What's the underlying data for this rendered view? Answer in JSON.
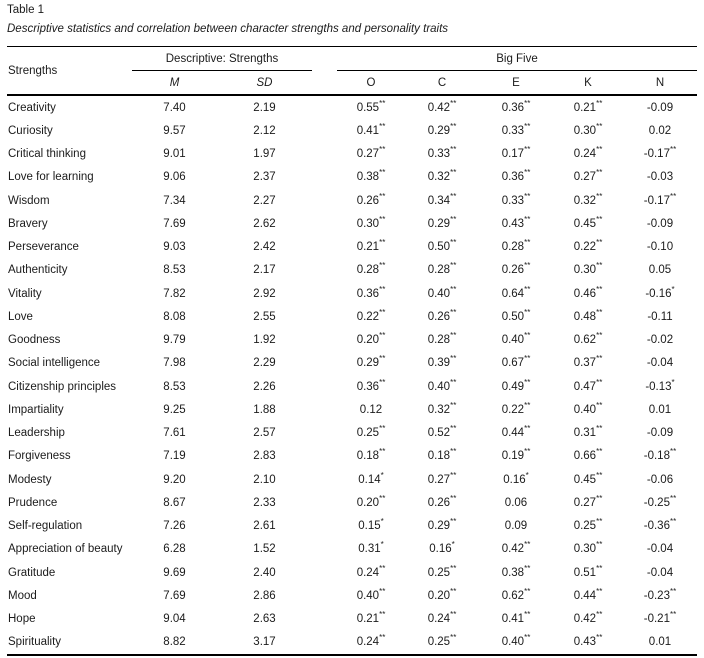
{
  "table_title": "Table 1",
  "caption": "Descriptive statistics and correlation between character strengths and personality traits",
  "header": {
    "row_label": "Strengths",
    "groups": {
      "descriptive": "Descriptive: Strengths",
      "bigfive": "Big Five"
    },
    "sub": {
      "m": "M",
      "sd": "SD",
      "o": "O",
      "c": "C",
      "e": "E",
      "k": "K",
      "n": "N"
    }
  },
  "rows": [
    {
      "strength": "Creativity",
      "m": "7.40",
      "sd": "2.19",
      "o": "0.55**",
      "c": "0.42**",
      "e": "0.36**",
      "k": "0.21**",
      "n": "-0.09"
    },
    {
      "strength": "Curiosity",
      "m": "9.57",
      "sd": "2.12",
      "o": "0.41**",
      "c": "0.29**",
      "e": "0.33**",
      "k": "0.30**",
      "n": "0.02"
    },
    {
      "strength": "Critical thinking",
      "m": "9.01",
      "sd": "1.97",
      "o": "0.27**",
      "c": "0.33**",
      "e": "0.17**",
      "k": "0.24**",
      "n": "-0.17**"
    },
    {
      "strength": "Love for learning",
      "m": "9.06",
      "sd": "2.37",
      "o": "0.38**",
      "c": "0.32**",
      "e": "0.36**",
      "k": "0.27**",
      "n": "-0.03"
    },
    {
      "strength": "Wisdom",
      "m": "7.34",
      "sd": "2.27",
      "o": "0.26**",
      "c": "0.34**",
      "e": "0.33**",
      "k": "0.32**",
      "n": "-0.17**"
    },
    {
      "strength": "Bravery",
      "m": "7.69",
      "sd": "2.62",
      "o": "0.30**",
      "c": "0.29**",
      "e": "0.43**",
      "k": "0.45**",
      "n": "-0.09"
    },
    {
      "strength": "Perseverance",
      "m": "9.03",
      "sd": "2.42",
      "o": "0.21**",
      "c": "0.50**",
      "e": "0.28**",
      "k": "0.22**",
      "n": "-0.10"
    },
    {
      "strength": "Authenticity",
      "m": "8.53",
      "sd": "2.17",
      "o": "0.28**",
      "c": "0.28**",
      "e": "0.26**",
      "k": "0.30**",
      "n": "0.05"
    },
    {
      "strength": "Vitality",
      "m": "7.82",
      "sd": "2.92",
      "o": "0.36**",
      "c": "0.40**",
      "e": "0.64**",
      "k": "0.46**",
      "n": "-0.16*"
    },
    {
      "strength": "Love",
      "m": "8.08",
      "sd": "2.55",
      "o": "0.22**",
      "c": "0.26**",
      "e": "0.50**",
      "k": "0.48**",
      "n": "-0.11"
    },
    {
      "strength": "Goodness",
      "m": "9.79",
      "sd": "1.92",
      "o": "0.20**",
      "c": "0.28**",
      "e": "0.40**",
      "k": "0.62**",
      "n": "-0.02"
    },
    {
      "strength": "Social intelligence",
      "m": "7.98",
      "sd": "2.29",
      "o": "0.29**",
      "c": "0.39**",
      "e": "0.67**",
      "k": "0.37**",
      "n": "-0.04"
    },
    {
      "strength": "Citizenship principles",
      "m": "8.53",
      "sd": "2.26",
      "o": "0.36**",
      "c": "0.40**",
      "e": "0.49**",
      "k": "0.47**",
      "n": "-0.13*"
    },
    {
      "strength": "Impartiality",
      "m": "9.25",
      "sd": "1.88",
      "o": "0.12",
      "c": "0.32**",
      "e": "0.22**",
      "k": "0.40**",
      "n": "0.01"
    },
    {
      "strength": "Leadership",
      "m": "7.61",
      "sd": "2.57",
      "o": "0.25**",
      "c": "0.52**",
      "e": "0.44**",
      "k": "0.31**",
      "n": "-0.09"
    },
    {
      "strength": "Forgiveness",
      "m": "7.19",
      "sd": "2.83",
      "o": "0.18**",
      "c": "0.18**",
      "e": "0.19**",
      "k": "0.66**",
      "n": "-0.18**"
    },
    {
      "strength": "Modesty",
      "m": "9.20",
      "sd": "2.10",
      "o": "0.14*",
      "c": "0.27**",
      "e": "0.16*",
      "k": "0.45**",
      "n": "-0.06"
    },
    {
      "strength": "Prudence",
      "m": "8.67",
      "sd": "2.33",
      "o": "0.20**",
      "c": "0.26**",
      "e": "0.06",
      "k": "0.27**",
      "n": "-0.25**"
    },
    {
      "strength": "Self-regulation",
      "m": "7.26",
      "sd": "2.61",
      "o": "0.15*",
      "c": "0.29**",
      "e": "0.09",
      "k": "0.25**",
      "n": "-0.36**"
    },
    {
      "strength": "Appreciation of beauty",
      "m": "6.28",
      "sd": "1.52",
      "o": "0.31*",
      "c": "0.16*",
      "e": "0.42**",
      "k": "0.30**",
      "n": "-0.04"
    },
    {
      "strength": "Gratitude",
      "m": "9.69",
      "sd": "2.40",
      "o": "0.24**",
      "c": "0.25**",
      "e": "0.38**",
      "k": "0.51**",
      "n": "-0.04"
    },
    {
      "strength": "Mood",
      "m": "7.69",
      "sd": "2.86",
      "o": "0.40**",
      "c": "0.20**",
      "e": "0.62**",
      "k": "0.44**",
      "n": "-0.23**"
    },
    {
      "strength": "Hope",
      "m": "9.04",
      "sd": "2.63",
      "o": "0.21**",
      "c": "0.24**",
      "e": "0.41**",
      "k": "0.42**",
      "n": "-0.21**"
    },
    {
      "strength": "Spirituality",
      "m": "8.82",
      "sd": "3.17",
      "o": "0.24**",
      "c": "0.25**",
      "e": "0.40**",
      "k": "0.43**",
      "n": "0.01"
    }
  ],
  "colors": {
    "background": "#ffffff",
    "text": "#1b1b1b",
    "rule": "#000000"
  }
}
